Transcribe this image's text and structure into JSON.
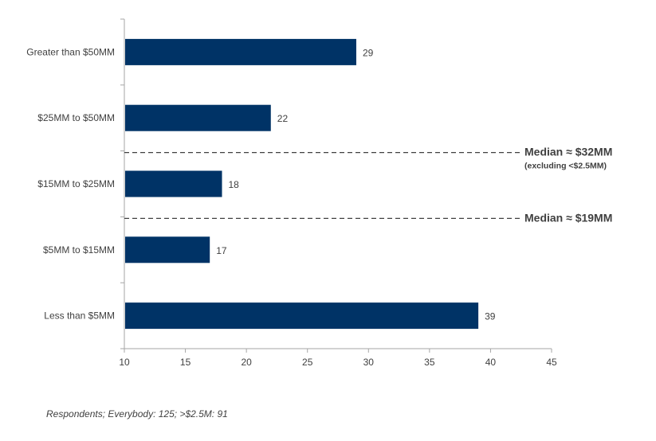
{
  "chart_data": {
    "type": "bar",
    "orientation": "horizontal",
    "categories": [
      "Greater than $50MM",
      "$25MM to $50MM",
      "$15MM to $25MM",
      "$5MM to $15MM",
      "Less than $5MM"
    ],
    "values": [
      29,
      22,
      18,
      17,
      39
    ],
    "xlim": [
      10,
      45
    ],
    "xticks": [
      10,
      15,
      20,
      25,
      30,
      35,
      40,
      45
    ],
    "bar_color": "#003366",
    "grid": false,
    "legend": "none",
    "annotations": [
      {
        "label": "Median ≈ $32MM",
        "sublabel": "(excluding <$2.5MM)",
        "between": [
          "$25MM to $50MM",
          "$15MM to $25MM"
        ]
      },
      {
        "label": "Median ≈ $19MM",
        "sublabel": "",
        "between": [
          "$15MM to $25MM",
          "$5MM to $15MM"
        ]
      }
    ]
  },
  "footnote": "Respondents; Everybody: 125; >$2.5M: 91"
}
